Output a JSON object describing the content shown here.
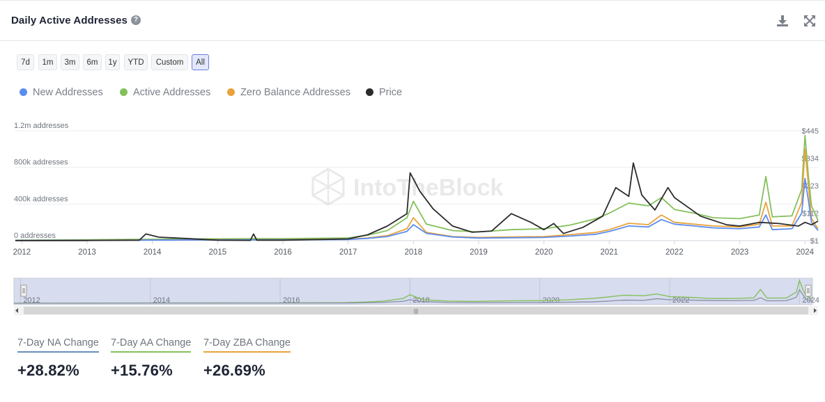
{
  "header": {
    "title": "Daily Active Addresses",
    "help_icon": "?"
  },
  "toolbar": {
    "download_icon": "download-icon",
    "expand_icon": "fullscreen-icon"
  },
  "ranges": [
    {
      "label": "7d",
      "active": false
    },
    {
      "label": "1m",
      "active": false
    },
    {
      "label": "3m",
      "active": false
    },
    {
      "label": "6m",
      "active": false
    },
    {
      "label": "1y",
      "active": false
    },
    {
      "label": "YTD",
      "active": false
    },
    {
      "label": "Custom",
      "active": false
    },
    {
      "label": "All",
      "active": true
    }
  ],
  "legend": [
    {
      "name": "New Addresses",
      "color": "#5b8def"
    },
    {
      "name": "Active Addresses",
      "color": "#84c05a"
    },
    {
      "name": "Zero Balance Addresses",
      "color": "#e8a33c"
    },
    {
      "name": "Price",
      "color": "#2b2b2b"
    }
  ],
  "watermark": "IntoTheBlock",
  "chart_data": {
    "type": "line",
    "x_ticks": [
      "2012",
      "2013",
      "2014",
      "2015",
      "2016",
      "2017",
      "2018",
      "2019",
      "2020",
      "2021",
      "2022",
      "2023",
      "2024"
    ],
    "y_left_ticks": [
      "0 addresses",
      "400k addresses",
      "800k addresses",
      "1.2m addresses"
    ],
    "y_right_ticks": [
      "$1",
      "$112",
      "$223",
      "$334",
      "$445"
    ],
    "x_range": [
      2011.9,
      2024.2
    ],
    "y_left_range": [
      0,
      1200000
    ],
    "y_right_range": [
      1,
      445
    ],
    "series": [
      {
        "name": "New Addresses",
        "axis": "left",
        "color": "#5b8def",
        "x": [
          2011.9,
          2013.0,
          2014.0,
          2015.0,
          2016.0,
          2017.0,
          2017.3,
          2017.6,
          2017.9,
          2018.0,
          2018.2,
          2018.6,
          2019.0,
          2019.5,
          2020.0,
          2020.4,
          2020.8,
          2021.0,
          2021.3,
          2021.6,
          2021.8,
          2022.0,
          2022.3,
          2022.6,
          2023.0,
          2023.3,
          2023.4,
          2023.5,
          2023.8,
          2023.95,
          2024.0,
          2024.05,
          2024.1,
          2024.2
        ],
        "y": [
          2000,
          4000,
          6000,
          8000,
          9000,
          12000,
          25000,
          45000,
          100000,
          175000,
          80000,
          40000,
          28000,
          32000,
          35000,
          50000,
          70000,
          100000,
          160000,
          150000,
          230000,
          180000,
          160000,
          140000,
          130000,
          150000,
          280000,
          120000,
          130000,
          300000,
          680000,
          450000,
          200000,
          110000
        ]
      },
      {
        "name": "Active Addresses",
        "axis": "left",
        "color": "#84c05a",
        "x": [
          2011.9,
          2013.0,
          2014.0,
          2015.0,
          2016.0,
          2017.0,
          2017.3,
          2017.6,
          2017.9,
          2018.0,
          2018.2,
          2018.6,
          2019.0,
          2019.5,
          2020.0,
          2020.4,
          2020.8,
          2021.0,
          2021.3,
          2021.6,
          2021.8,
          2022.0,
          2022.3,
          2022.6,
          2023.0,
          2023.3,
          2023.4,
          2023.5,
          2023.8,
          2023.95,
          2024.0,
          2024.05,
          2024.1,
          2024.2
        ],
        "y": [
          5000,
          10000,
          15000,
          20000,
          22000,
          30000,
          60000,
          110000,
          250000,
          430000,
          180000,
          110000,
          95000,
          120000,
          130000,
          170000,
          240000,
          300000,
          410000,
          380000,
          470000,
          340000,
          300000,
          250000,
          240000,
          280000,
          700000,
          260000,
          270000,
          560000,
          1150000,
          720000,
          380000,
          220000
        ]
      },
      {
        "name": "Zero Balance Addresses",
        "axis": "left",
        "color": "#e8a33c",
        "x": [
          2011.9,
          2013.0,
          2014.0,
          2015.0,
          2016.0,
          2017.0,
          2017.3,
          2017.6,
          2017.9,
          2018.0,
          2018.2,
          2018.6,
          2019.0,
          2019.5,
          2020.0,
          2020.4,
          2020.8,
          2021.0,
          2021.3,
          2021.6,
          2021.8,
          2022.0,
          2022.3,
          2022.6,
          2023.0,
          2023.3,
          2023.4,
          2023.5,
          2023.8,
          2023.95,
          2024.0,
          2024.05,
          2024.1,
          2024.2
        ],
        "y": [
          2000,
          5000,
          7000,
          10000,
          11000,
          15000,
          30000,
          55000,
          130000,
          250000,
          90000,
          45000,
          35000,
          40000,
          45000,
          65000,
          90000,
          120000,
          190000,
          175000,
          280000,
          200000,
          180000,
          160000,
          150000,
          180000,
          420000,
          160000,
          160000,
          420000,
          1000000,
          620000,
          240000,
          130000
        ]
      },
      {
        "name": "Price",
        "axis": "right",
        "color": "#2b2b2b",
        "x": [
          2011.9,
          2013.0,
          2013.8,
          2013.9,
          2014.1,
          2014.5,
          2015.0,
          2015.5,
          2015.55,
          2015.6,
          2016.0,
          2017.0,
          2017.3,
          2017.6,
          2017.9,
          2017.95,
          2018.1,
          2018.3,
          2018.6,
          2018.9,
          2019.2,
          2019.5,
          2019.8,
          2020.0,
          2020.15,
          2020.3,
          2020.6,
          2020.9,
          2021.1,
          2021.3,
          2021.37,
          2021.5,
          2021.7,
          2021.9,
          2022.0,
          2022.4,
          2022.8,
          2023.0,
          2023.3,
          2023.6,
          2023.9,
          2024.0,
          2024.1,
          2024.2
        ],
        "y": [
          1,
          1.5,
          3,
          28,
          15,
          10,
          3,
          2,
          28,
          3,
          3,
          8,
          25,
          60,
          110,
          275,
          200,
          130,
          60,
          35,
          40,
          110,
          75,
          45,
          70,
          30,
          55,
          100,
          215,
          180,
          315,
          185,
          125,
          215,
          175,
          100,
          65,
          60,
          75,
          70,
          60,
          75,
          65,
          80
        ]
      }
    ]
  },
  "navigator": {
    "x_ticks": [
      "2012",
      "2014",
      "2016",
      "2018",
      "2020",
      "2022",
      "2024"
    ],
    "scroll_grip": "|||"
  },
  "stats": [
    {
      "label": "7-Day NA Change",
      "value": "+28.82%",
      "color": "#6b8fbf"
    },
    {
      "label": "7-Day AA Change",
      "value": "+15.76%",
      "color": "#84c05a"
    },
    {
      "label": "7-Day ZBA Change",
      "value": "+26.69%",
      "color": "#e8a33c"
    }
  ]
}
